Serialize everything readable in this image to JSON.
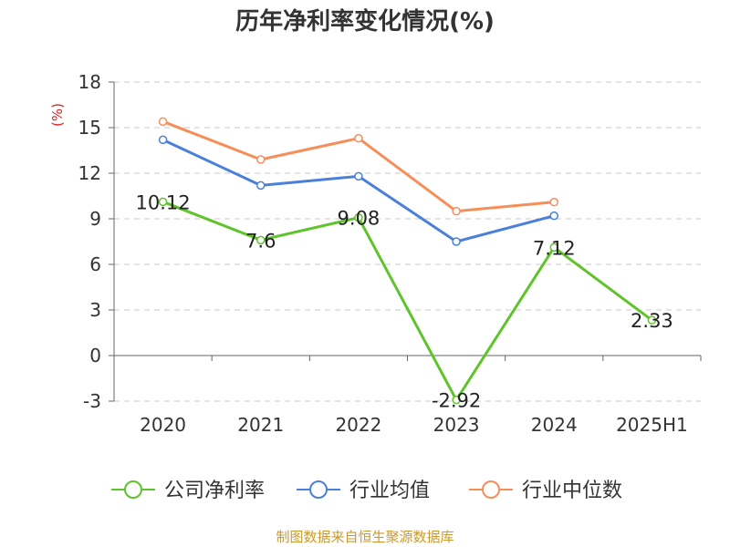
{
  "chart_data": {
    "type": "line",
    "title": "历年净利率变化情况(%)",
    "ylabel": "(%)",
    "categories": [
      "2020",
      "2021",
      "2022",
      "2023",
      "2024",
      "2025H1"
    ],
    "ylim": [
      -3,
      18
    ],
    "yticks": [
      -3,
      0,
      3,
      6,
      9,
      12,
      15,
      18
    ],
    "grid": true,
    "legend_position": "bottom",
    "series": [
      {
        "name": "公司净利率",
        "color": "#5fc32b",
        "values": [
          10.12,
          7.6,
          9.08,
          -2.92,
          7.12,
          2.33
        ],
        "labels": [
          "10.12",
          "7.6",
          "9.08",
          "-2.92",
          "7.12",
          "2.33"
        ]
      },
      {
        "name": "行业均值",
        "color": "#4b7fdc",
        "values": [
          14.2,
          11.2,
          11.8,
          7.5,
          9.2,
          null
        ]
      },
      {
        "name": "行业中位数",
        "color": "#f78e5a",
        "values": [
          15.4,
          12.9,
          14.3,
          9.5,
          10.1,
          null
        ]
      }
    ]
  },
  "footer": {
    "source": "制图数据来自恒生聚源数据库",
    "color": "#c89a2e"
  },
  "ylabel_color": "#e02020"
}
